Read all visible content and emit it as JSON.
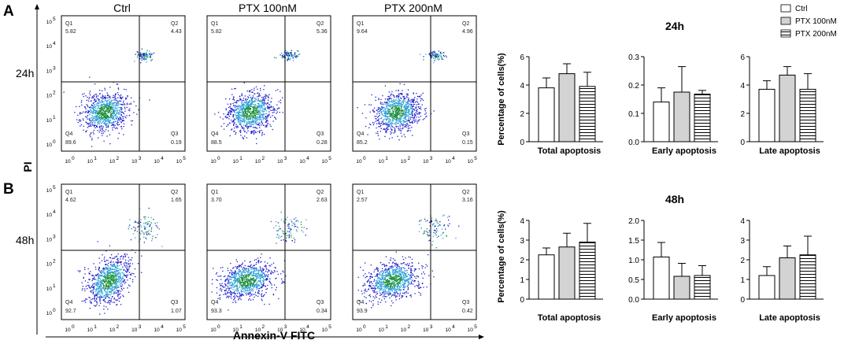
{
  "panels": {
    "A": "A",
    "B": "B"
  },
  "flow": {
    "col_titles": [
      "Ctrl",
      "PTX 100nM",
      "PTX  200nM"
    ],
    "row_labels": [
      "24h",
      "48h"
    ],
    "y_axis_label": "PI",
    "x_axis_label": "Annexin-V FITC",
    "decade_labels": [
      "10",
      "10",
      "10",
      "10",
      "10",
      "10"
    ],
    "decade_exponents": [
      "0",
      "1",
      "2",
      "3",
      "4",
      "5"
    ],
    "quadrant_names": [
      "Q1",
      "Q2",
      "Q3",
      "Q4"
    ],
    "plots": [
      [
        {
          "Q1": "5.82",
          "Q2": "4.43",
          "Q3": "0.19",
          "Q4": "89.6"
        },
        {
          "Q1": "5.82",
          "Q2": "5.36",
          "Q3": "0.28",
          "Q4": "88.5"
        },
        {
          "Q1": "9.64",
          "Q2": "4.96",
          "Q3": "0.15",
          "Q4": "85.2"
        }
      ],
      [
        {
          "Q1": "4.62",
          "Q2": "1.65",
          "Q3": "1.07",
          "Q4": "92.7"
        },
        {
          "Q1": "3.70",
          "Q2": "2.63",
          "Q3": "0.34",
          "Q4": "93.3"
        },
        {
          "Q1": "2.57",
          "Q2": "3.16",
          "Q3": "0.42",
          "Q4": "93.9"
        }
      ]
    ]
  },
  "legend": {
    "items": [
      "Ctrl",
      "PTX 100nM",
      "PTX 200nM"
    ]
  },
  "colors": {
    "bar_ctrl": "#ffffff",
    "bar_ptx100": "#d3d3d3",
    "hatch": "#000000",
    "dot_core": "#1a8f3c",
    "dot_mid": "#2fa0d8",
    "dot_outer": "#1a1acc"
  },
  "chart_data": [
    {
      "type": "bar",
      "group": "24h",
      "title": "24h",
      "ylabel": "Percentage of cells(%)",
      "charts": [
        {
          "xlabel": "Total apoptosis",
          "ylim": [
            0,
            6
          ],
          "yticks": [
            "0",
            "2",
            "4",
            "6"
          ],
          "series": [
            {
              "name": "Ctrl",
              "value": 3.8,
              "error": 0.7
            },
            {
              "name": "PTX 100nM",
              "value": 4.8,
              "error": 0.7
            },
            {
              "name": "PTX 200nM",
              "value": 3.9,
              "error": 1.0
            }
          ]
        },
        {
          "xlabel": "Early apoptosis",
          "ylim": [
            0,
            0.3
          ],
          "yticks": [
            "0.0",
            "0.1",
            "0.2",
            "0.3"
          ],
          "series": [
            {
              "name": "Ctrl",
              "value": 0.14,
              "error": 0.05
            },
            {
              "name": "PTX 100nM",
              "value": 0.175,
              "error": 0.09
            },
            {
              "name": "PTX 200nM",
              "value": 0.168,
              "error": 0.013
            }
          ]
        },
        {
          "xlabel": "Late apoptosis",
          "ylim": [
            0,
            6
          ],
          "yticks": [
            "0",
            "2",
            "4",
            "6"
          ],
          "series": [
            {
              "name": "Ctrl",
              "value": 3.7,
              "error": 0.6
            },
            {
              "name": "PTX 100nM",
              "value": 4.7,
              "error": 0.6
            },
            {
              "name": "PTX 200nM",
              "value": 3.7,
              "error": 1.1
            }
          ]
        }
      ]
    },
    {
      "type": "bar",
      "group": "48h",
      "title": "48h",
      "ylabel": "Percentage of cells(%)",
      "charts": [
        {
          "xlabel": "Total apoptosis",
          "ylim": [
            0,
            4
          ],
          "yticks": [
            "0",
            "1",
            "2",
            "3",
            "4"
          ],
          "series": [
            {
              "name": "Ctrl",
              "value": 2.25,
              "error": 0.35
            },
            {
              "name": "PTX 100nM",
              "value": 2.65,
              "error": 0.7
            },
            {
              "name": "PTX 200nM",
              "value": 2.9,
              "error": 0.95
            }
          ]
        },
        {
          "xlabel": "Early apoptosis",
          "ylim": [
            0,
            2.0
          ],
          "yticks": [
            "0.0",
            "0.5",
            "1.0",
            "1.5",
            "2.0"
          ],
          "series": [
            {
              "name": "Ctrl",
              "value": 1.07,
              "error": 0.37
            },
            {
              "name": "PTX 100nM",
              "value": 0.58,
              "error": 0.33
            },
            {
              "name": "PTX 200nM",
              "value": 0.6,
              "error": 0.25
            }
          ]
        },
        {
          "xlabel": "Late apoptosis",
          "ylim": [
            0,
            4
          ],
          "yticks": [
            "0",
            "1",
            "2",
            "3",
            "4"
          ],
          "series": [
            {
              "name": "Ctrl",
              "value": 1.2,
              "error": 0.45
            },
            {
              "name": "PTX 100nM",
              "value": 2.1,
              "error": 0.6
            },
            {
              "name": "PTX 200nM",
              "value": 2.25,
              "error": 0.95
            }
          ]
        }
      ]
    }
  ]
}
